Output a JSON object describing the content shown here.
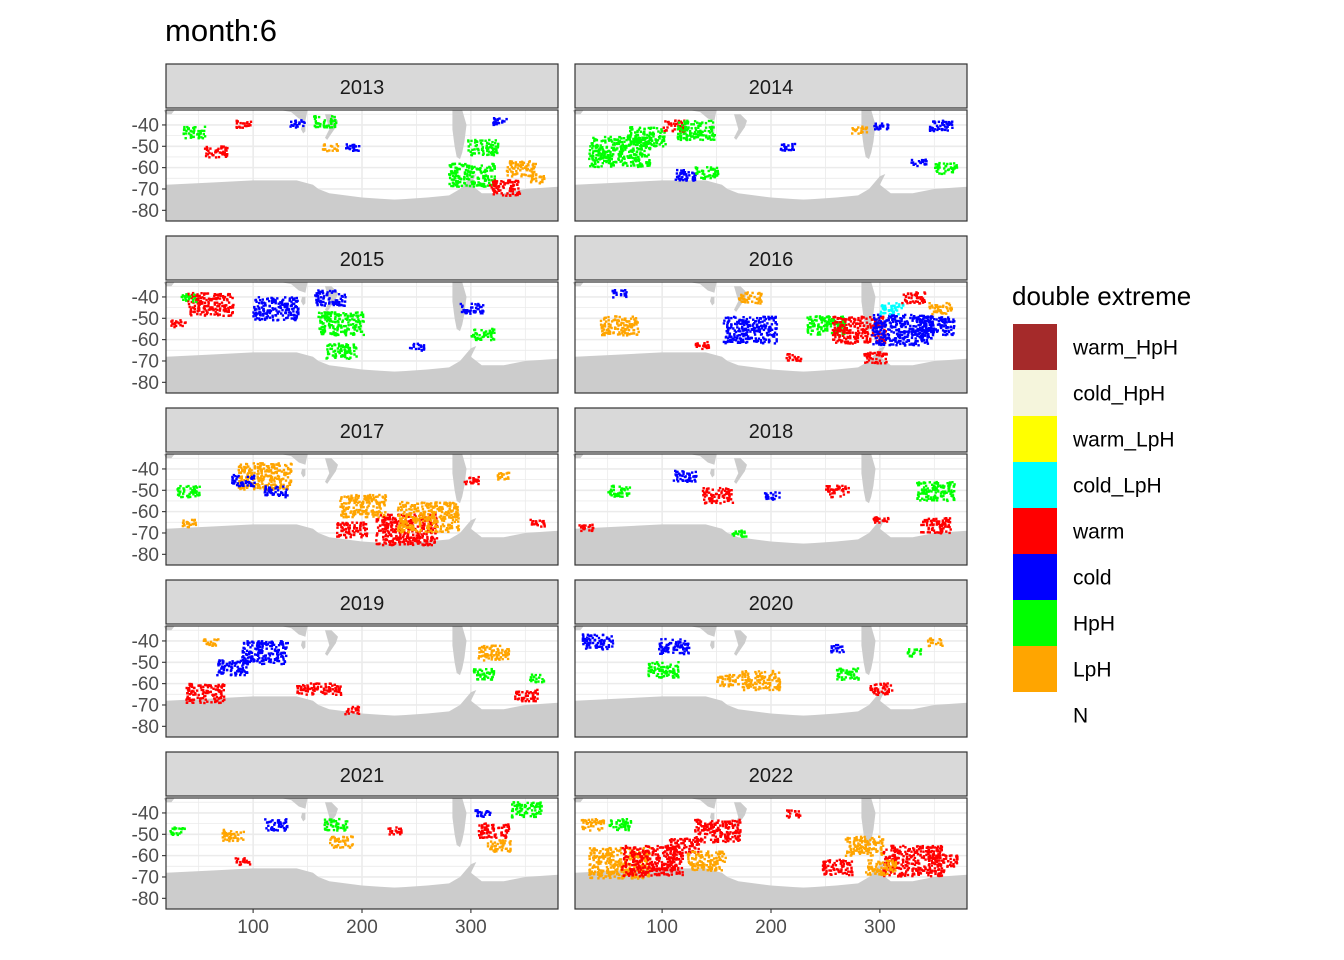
{
  "chart_data": {
    "type": "heatmap",
    "title": "month:6",
    "facet_variable": "year",
    "facets": [
      "2013",
      "2014",
      "2015",
      "2016",
      "2017",
      "2018",
      "2019",
      "2020",
      "2021",
      "2022"
    ],
    "x_ticks": [
      100,
      200,
      300
    ],
    "y_ticks": [
      -40,
      -50,
      -60,
      -70,
      -80
    ],
    "xlim": [
      20,
      380
    ],
    "ylim": [
      -85,
      -33
    ],
    "land_color": "#cccccc",
    "legend": {
      "title": "double extreme",
      "entries": [
        {
          "label": "warm_HpH",
          "color": "#a52a2a"
        },
        {
          "label": "cold_HpH",
          "color": "#f5f5dc"
        },
        {
          "label": "warm_LpH",
          "color": "#ffff00"
        },
        {
          "label": "cold_LpH",
          "color": "#00ffff"
        },
        {
          "label": "warm",
          "color": "#ff0000"
        },
        {
          "label": "cold",
          "color": "#0000ff"
        },
        {
          "label": "HpH",
          "color": "#00ff00"
        },
        {
          "label": "LpH",
          "color": "#ffa500"
        },
        {
          "label": "N",
          "color": null
        }
      ]
    },
    "clusters": {
      "2013": [
        [
          "HpH",
          45,
          -43,
          3
        ],
        [
          "warm",
          65,
          -52,
          3
        ],
        [
          "warm",
          90,
          -39,
          2
        ],
        [
          "cold",
          140,
          -39,
          2
        ],
        [
          "HpH",
          165,
          -38,
          3
        ],
        [
          "cold",
          190,
          -50,
          2
        ],
        [
          "LpH",
          170,
          -50,
          2
        ],
        [
          "HpH",
          300,
          -63,
          6
        ],
        [
          "HpH",
          310,
          -50,
          4
        ],
        [
          "warm",
          330,
          -69,
          4
        ],
        [
          "LpH",
          345,
          -60,
          4
        ],
        [
          "LpH",
          360,
          -65,
          2
        ],
        [
          "cold",
          325,
          -38,
          2
        ]
      ],
      "2014": [
        [
          "HpH",
          60,
          -52,
          8
        ],
        [
          "HpH",
          85,
          -45,
          5
        ],
        [
          "warm",
          110,
          -40,
          3
        ],
        [
          "HpH",
          130,
          -42,
          5
        ],
        [
          "cold",
          120,
          -63,
          3
        ],
        [
          "HpH",
          140,
          -62,
          3
        ],
        [
          "cold",
          215,
          -50,
          2
        ],
        [
          "LpH",
          280,
          -42,
          2
        ],
        [
          "cold",
          355,
          -40,
          3
        ],
        [
          "HpH",
          360,
          -60,
          3
        ],
        [
          "cold",
          335,
          -57,
          2
        ],
        [
          "cold",
          300,
          -40,
          2
        ]
      ],
      "2015": [
        [
          "warm",
          60,
          -43,
          6
        ],
        [
          "cold",
          120,
          -45,
          6
        ],
        [
          "cold",
          170,
          -40,
          4
        ],
        [
          "HpH",
          180,
          -52,
          6
        ],
        [
          "HpH",
          180,
          -65,
          4
        ],
        [
          "HpH",
          40,
          -40,
          2
        ],
        [
          "cold",
          250,
          -63,
          2
        ],
        [
          "HpH",
          310,
          -57,
          3
        ],
        [
          "cold",
          300,
          -45,
          3
        ],
        [
          "warm",
          30,
          -52,
          2
        ]
      ],
      "2016": [
        [
          "LpH",
          60,
          -53,
          5
        ],
        [
          "cold",
          60,
          -38,
          2
        ],
        [
          "cold",
          180,
          -55,
          7
        ],
        [
          "HpH",
          250,
          -53,
          5
        ],
        [
          "warm",
          280,
          -55,
          7
        ],
        [
          "cold",
          320,
          -55,
          8
        ],
        [
          "cold",
          350,
          -53,
          5
        ],
        [
          "cold_LpH",
          310,
          -45,
          3
        ],
        [
          "LpH",
          355,
          -45,
          3
        ],
        [
          "warm",
          295,
          -68,
          3
        ],
        [
          "warm",
          135,
          -62,
          2
        ],
        [
          "warm",
          220,
          -68,
          2
        ],
        [
          "warm",
          330,
          -40,
          3
        ],
        [
          "LpH",
          180,
          -40,
          3
        ]
      ],
      "2017": [
        [
          "LpH",
          110,
          -43,
          7
        ],
        [
          "cold",
          90,
          -45,
          3
        ],
        [
          "HpH",
          40,
          -50,
          3
        ],
        [
          "LpH",
          200,
          -57,
          6
        ],
        [
          "warm",
          240,
          -68,
          8
        ],
        [
          "LpH",
          260,
          -62,
          8
        ],
        [
          "warm",
          190,
          -68,
          4
        ],
        [
          "cold",
          120,
          -50,
          3
        ],
        [
          "LpH",
          330,
          -43,
          2
        ],
        [
          "warm",
          360,
          -65,
          2
        ],
        [
          "LpH",
          40,
          -65,
          2
        ],
        [
          "warm",
          300,
          -45,
          2
        ]
      ],
      "2018": [
        [
          "cold",
          120,
          -43,
          3
        ],
        [
          "HpH",
          60,
          -50,
          3
        ],
        [
          "warm",
          150,
          -52,
          4
        ],
        [
          "warm",
          260,
          -50,
          3
        ],
        [
          "HpH",
          350,
          -50,
          5
        ],
        [
          "warm",
          350,
          -66,
          4
        ],
        [
          "warm",
          300,
          -63,
          2
        ],
        [
          "warm",
          30,
          -67,
          2
        ],
        [
          "cold",
          200,
          -52,
          2
        ],
        [
          "HpH",
          170,
          -70,
          2
        ]
      ],
      "2019": [
        [
          "cold",
          110,
          -45,
          6
        ],
        [
          "cold",
          80,
          -52,
          4
        ],
        [
          "warm",
          55,
          -64,
          5
        ],
        [
          "warm",
          150,
          -62,
          3
        ],
        [
          "warm",
          170,
          -62,
          3
        ],
        [
          "HpH",
          310,
          -55,
          3
        ],
        [
          "LpH",
          320,
          -45,
          4
        ],
        [
          "warm",
          350,
          -65,
          3
        ],
        [
          "HpH",
          360,
          -57,
          2
        ],
        [
          "LpH",
          60,
          -40,
          2
        ],
        [
          "warm",
          190,
          -72,
          2
        ]
      ],
      "2020": [
        [
          "cold",
          40,
          -40,
          4
        ],
        [
          "cold",
          110,
          -42,
          4
        ],
        [
          "HpH",
          100,
          -53,
          4
        ],
        [
          "LpH",
          190,
          -58,
          5
        ],
        [
          "HpH",
          270,
          -55,
          3
        ],
        [
          "cold",
          260,
          -43,
          2
        ],
        [
          "warm",
          300,
          -62,
          3
        ],
        [
          "LpH",
          350,
          -40,
          2
        ],
        [
          "HpH",
          330,
          -45,
          2
        ],
        [
          "LpH",
          160,
          -58,
          3
        ]
      ],
      "2021": [
        [
          "LpH",
          80,
          -50,
          3
        ],
        [
          "cold",
          120,
          -45,
          3
        ],
        [
          "HpH",
          175,
          -45,
          3
        ],
        [
          "LpH",
          180,
          -53,
          3
        ],
        [
          "warm",
          320,
          -48,
          4
        ],
        [
          "LpH",
          325,
          -55,
          3
        ],
        [
          "HpH",
          350,
          -38,
          4
        ],
        [
          "cold",
          310,
          -40,
          2
        ],
        [
          "warm",
          230,
          -48,
          2
        ],
        [
          "HpH",
          30,
          -48,
          2
        ],
        [
          "warm",
          90,
          -62,
          2
        ]
      ],
      "2022": [
        [
          "LpH",
          35,
          -45,
          3
        ],
        [
          "LpH",
          60,
          -63,
          8
        ],
        [
          "warm",
          90,
          -62,
          8
        ],
        [
          "warm",
          120,
          -55,
          4
        ],
        [
          "warm",
          150,
          -48,
          6
        ],
        [
          "HpH",
          60,
          -45,
          3
        ],
        [
          "LpH",
          140,
          -62,
          5
        ],
        [
          "warm",
          260,
          -65,
          4
        ],
        [
          "LpH",
          285,
          -55,
          5
        ],
        [
          "warm",
          330,
          -62,
          8
        ],
        [
          "LpH",
          300,
          -65,
          4
        ],
        [
          "warm",
          360,
          -62,
          3
        ],
        [
          "warm",
          220,
          -40,
          2
        ]
      ]
    }
  }
}
